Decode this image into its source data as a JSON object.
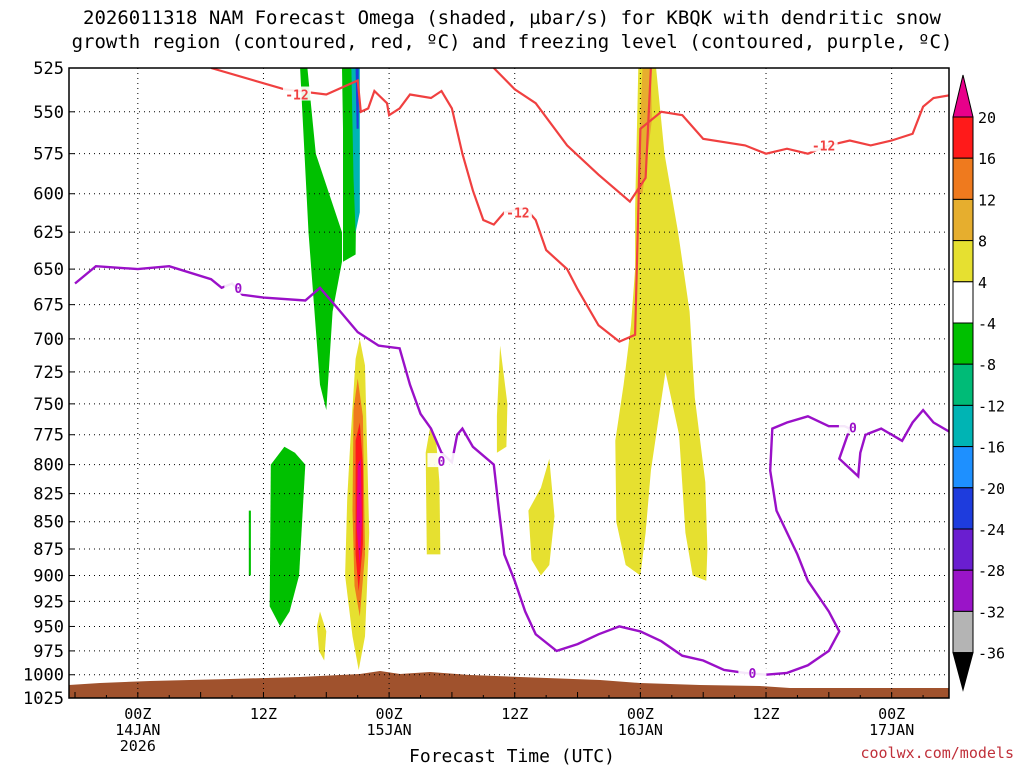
{
  "title_line1": "2026011318 NAM Forecast Omega (shaded, µbar/s) for KBQK with dendritic snow",
  "title_line2": "growth region (contoured, red, ºC) and freezing level (contoured, purple, ºC)",
  "watermark": "coolwx.com/models",
  "chart_data": {
    "type": "heatmap",
    "xlabel": "Forecast Time (UTC)",
    "ylabel": "",
    "x_unit": "forecast hour",
    "xlim": [
      0,
      84
    ],
    "ylim": [
      1025,
      525
    ],
    "y_ticks": [
      525,
      550,
      575,
      600,
      625,
      650,
      675,
      700,
      725,
      750,
      775,
      800,
      825,
      850,
      875,
      900,
      925,
      950,
      975,
      1000,
      1025
    ],
    "x_ticks": [
      {
        "hour": 6,
        "lines": [
          "00Z",
          "14JAN",
          "2026"
        ]
      },
      {
        "hour": 18,
        "lines": [
          "12Z"
        ]
      },
      {
        "hour": 30,
        "lines": [
          "00Z",
          "15JAN"
        ]
      },
      {
        "hour": 42,
        "lines": [
          "12Z"
        ]
      },
      {
        "hour": 54,
        "lines": [
          "00Z",
          "16JAN"
        ]
      },
      {
        "hour": 66,
        "lines": [
          "12Z"
        ]
      },
      {
        "hour": 78,
        "lines": [
          "00Z",
          "17JAN"
        ]
      }
    ],
    "colorbar": {
      "labels": [
        "20",
        "16",
        "12",
        "8",
        "4",
        "-4",
        "-8",
        "-12",
        "-16",
        "-20",
        "-24",
        "-28",
        "-32",
        "-36"
      ],
      "colors": [
        "#ff1a1a",
        "#ef7a1e",
        "#e6ae2e",
        "#e6e030",
        "#ffffff",
        "#00c000",
        "#00bb77",
        "#00b4b4",
        "#1e90ff",
        "#1e3cdd",
        "#6a1ed0",
        "#9a14c8",
        "#b4b4b4"
      ],
      "top_color": "#e8008a",
      "bottom_color": "#000000"
    },
    "contours": {
      "dgz_minus12": {
        "color": "#f04040",
        "label": "-12",
        "upper_points": [
          [
            13,
            525
          ],
          [
            20,
            537
          ],
          [
            24,
            540
          ],
          [
            27,
            532
          ],
          [
            27.3,
            550
          ],
          [
            28,
            548
          ],
          [
            28.6,
            538
          ],
          [
            29.8,
            545
          ],
          [
            30,
            552
          ],
          [
            31,
            548
          ],
          [
            32,
            540
          ],
          [
            34,
            542
          ],
          [
            35,
            538
          ],
          [
            36,
            548
          ],
          [
            37,
            575
          ],
          [
            38,
            598
          ],
          [
            39,
            617
          ],
          [
            40,
            620
          ],
          [
            41,
            612
          ],
          [
            43,
            609
          ],
          [
            44,
            617
          ],
          [
            45,
            637
          ],
          [
            47,
            650
          ],
          [
            48,
            664
          ],
          [
            50,
            690
          ],
          [
            52,
            702
          ],
          [
            53.5,
            697
          ],
          [
            54,
            560
          ],
          [
            56,
            550
          ],
          [
            58,
            552
          ],
          [
            60,
            566
          ],
          [
            64,
            570
          ],
          [
            66,
            575
          ],
          [
            68,
            572
          ],
          [
            70,
            575
          ],
          [
            72,
            570
          ],
          [
            74,
            567
          ],
          [
            76,
            570
          ],
          [
            78,
            567
          ],
          [
            80,
            563
          ],
          [
            81,
            547
          ],
          [
            82,
            542
          ],
          [
            84,
            540
          ]
        ],
        "lower_points": [
          [
            40,
            525
          ],
          [
            42,
            537
          ],
          [
            44,
            545
          ],
          [
            47,
            570
          ],
          [
            50,
            588
          ],
          [
            53,
            605
          ],
          [
            54.5,
            590
          ],
          [
            55,
            525
          ]
        ]
      },
      "freezing_level": {
        "color": "#9a10c8",
        "label": "0",
        "main_points": [
          [
            0,
            660
          ],
          [
            2,
            648
          ],
          [
            6,
            650
          ],
          [
            9,
            648
          ],
          [
            13,
            657
          ],
          [
            14,
            663
          ],
          [
            15,
            660
          ],
          [
            16,
            668
          ],
          [
            18,
            670
          ],
          [
            22,
            672
          ],
          [
            23.4,
            663
          ],
          [
            25,
            677
          ],
          [
            27,
            695
          ],
          [
            29,
            705
          ],
          [
            31,
            707
          ],
          [
            32,
            735
          ],
          [
            33,
            758
          ],
          [
            34,
            770
          ],
          [
            35,
            790
          ],
          [
            36,
            798
          ],
          [
            36.5,
            775
          ],
          [
            37,
            770
          ],
          [
            38,
            785
          ],
          [
            40,
            800
          ],
          [
            40.5,
            840
          ],
          [
            41,
            880
          ],
          [
            42,
            905
          ],
          [
            43,
            935
          ],
          [
            44,
            958
          ],
          [
            46,
            975
          ],
          [
            48,
            968
          ],
          [
            50,
            958
          ],
          [
            52,
            950
          ],
          [
            54,
            955
          ],
          [
            56,
            965
          ],
          [
            58,
            980
          ],
          [
            60,
            985
          ],
          [
            62,
            995
          ],
          [
            64,
            998
          ],
          [
            66,
            1000
          ],
          [
            68,
            998
          ],
          [
            70,
            990
          ],
          [
            72,
            975
          ],
          [
            73,
            955
          ],
          [
            72,
            935
          ],
          [
            70,
            905
          ],
          [
            69,
            880
          ],
          [
            67,
            840
          ],
          [
            66.4,
            805
          ],
          [
            66.6,
            770
          ],
          [
            68,
            765
          ],
          [
            70,
            760
          ],
          [
            72,
            768
          ],
          [
            73.5,
            768
          ],
          [
            74,
            770
          ],
          [
            73,
            795
          ],
          [
            74.8,
            810
          ],
          [
            75,
            790
          ],
          [
            75.5,
            775
          ],
          [
            77,
            770
          ],
          [
            78,
            775
          ],
          [
            79,
            780
          ],
          [
            80,
            765
          ],
          [
            81,
            755
          ],
          [
            82,
            765
          ],
          [
            84,
            775
          ]
        ]
      }
    },
    "omega_shading": [
      {
        "value_range": [
          -8,
          -4
        ],
        "color": "#00c000",
        "points": [
          [
            21.5,
            525
          ],
          [
            22.2,
            525
          ],
          [
            23,
            575
          ],
          [
            25.5,
            625
          ],
          [
            25.5,
            645
          ],
          [
            24.6,
            680
          ],
          [
            24,
            755
          ],
          [
            23.4,
            735
          ],
          [
            22.3,
            625
          ]
        ]
      },
      {
        "value_range": [
          -8,
          -4
        ],
        "color": "#00c000",
        "points": [
          [
            25.5,
            525
          ],
          [
            26.4,
            525
          ],
          [
            26.9,
            575
          ],
          [
            26.8,
            640
          ],
          [
            25.6,
            645
          ],
          [
            25.6,
            560
          ]
        ]
      },
      {
        "value_range": [
          -16,
          -8
        ],
        "color": "#00b4b4",
        "points": [
          [
            26.4,
            525
          ],
          [
            27.2,
            525
          ],
          [
            27.2,
            612
          ],
          [
            26.8,
            625
          ],
          [
            26.6,
            590
          ]
        ]
      },
      {
        "value_range": [
          -24,
          -16
        ],
        "color": "#1e3cdd",
        "points": [
          [
            26.8,
            525
          ],
          [
            27.1,
            525
          ],
          [
            27.1,
            560
          ],
          [
            26.9,
            560
          ]
        ]
      },
      {
        "value_range": [
          -8,
          -4
        ],
        "color": "#00c000",
        "points": [
          [
            18.7,
            800
          ],
          [
            20,
            785
          ],
          [
            21,
            790
          ],
          [
            22,
            800
          ],
          [
            21.4,
            900
          ],
          [
            20.5,
            935
          ],
          [
            19.6,
            950
          ],
          [
            18.6,
            930
          ]
        ]
      },
      {
        "value_range": [
          -8,
          -4
        ],
        "color": "#00c000",
        "points": [
          [
            16.6,
            840
          ],
          [
            16.8,
            840
          ],
          [
            16.8,
            900
          ],
          [
            16.6,
            900
          ]
        ]
      },
      {
        "value_range": [
          4,
          8
        ],
        "color": "#e6e030",
        "points": [
          [
            26.3,
            780
          ],
          [
            26.8,
            715
          ],
          [
            27.2,
            700
          ],
          [
            27.7,
            720
          ],
          [
            28.1,
            860
          ],
          [
            27.7,
            960
          ],
          [
            27.1,
            995
          ],
          [
            26.5,
            960
          ],
          [
            25.8,
            900
          ],
          [
            26,
            830
          ]
        ]
      },
      {
        "value_range": [
          8,
          16
        ],
        "color": "#ef7a1e",
        "points": [
          [
            26.6,
            755
          ],
          [
            27,
            730
          ],
          [
            27.5,
            760
          ],
          [
            27.7,
            880
          ],
          [
            27.2,
            940
          ],
          [
            26.7,
            910
          ],
          [
            26.5,
            840
          ]
        ]
      },
      {
        "value_range": [
          16,
          20
        ],
        "color": "#ff1a1a",
        "points": [
          [
            26.8,
            780
          ],
          [
            27.2,
            765
          ],
          [
            27.5,
            800
          ],
          [
            27.5,
            870
          ],
          [
            27.1,
            915
          ],
          [
            26.8,
            880
          ]
        ]
      },
      {
        "value_range": [
          20,
          99
        ],
        "color": "#e8008a",
        "points": [
          [
            27,
            800
          ],
          [
            27.3,
            795
          ],
          [
            27.4,
            850
          ],
          [
            27.2,
            890
          ],
          [
            26.9,
            855
          ]
        ]
      },
      {
        "value_range": [
          4,
          8
        ],
        "color": "#e6e030",
        "points": [
          [
            23.1,
            950
          ],
          [
            23.4,
            935
          ],
          [
            24.0,
            955
          ],
          [
            23.8,
            985
          ],
          [
            23.3,
            975
          ]
        ]
      },
      {
        "value_range": [
          4,
          8
        ],
        "color": "#e6e030",
        "points": [
          [
            33.5,
            790
          ],
          [
            33.9,
            770
          ],
          [
            34.5,
            780
          ],
          [
            34.8,
            815
          ],
          [
            34.9,
            880
          ],
          [
            33.6,
            880
          ]
        ]
      },
      {
        "value_range": [
          4,
          8
        ],
        "color": "#e6e030",
        "points": [
          [
            40.3,
            760
          ],
          [
            40.6,
            705
          ],
          [
            41.3,
            750
          ],
          [
            41.2,
            785
          ],
          [
            40.3,
            790
          ]
        ]
      },
      {
        "value_range": [
          4,
          8
        ],
        "color": "#e6e030",
        "points": [
          [
            43.3,
            840
          ],
          [
            44.5,
            820
          ],
          [
            45.3,
            795
          ],
          [
            45.8,
            845
          ],
          [
            45.3,
            890
          ],
          [
            44.5,
            900
          ],
          [
            43.6,
            885
          ]
        ]
      },
      {
        "value_range": [
          4,
          8
        ],
        "color": "#e6e030",
        "points": [
          [
            53.5,
            610
          ],
          [
            53.8,
            525
          ],
          [
            55.5,
            525
          ],
          [
            56.3,
            575
          ],
          [
            57.6,
            625
          ],
          [
            58.7,
            680
          ],
          [
            59.2,
            745
          ],
          [
            60.2,
            815
          ],
          [
            60.4,
            875
          ],
          [
            60.3,
            905
          ],
          [
            59,
            900
          ],
          [
            58.3,
            860
          ],
          [
            57.7,
            775
          ],
          [
            56.4,
            725
          ],
          [
            55,
            805
          ],
          [
            54.5,
            860
          ],
          [
            54,
            900
          ],
          [
            52.6,
            890
          ],
          [
            51.7,
            850
          ],
          [
            51.6,
            780
          ],
          [
            52.4,
            735
          ],
          [
            53.1,
            690
          ],
          [
            53.5,
            650
          ]
        ]
      },
      {
        "value_range": [
          8,
          12
        ],
        "color": "#e6ae2e",
        "points": [
          [
            53.7,
            600
          ],
          [
            54.2,
            525
          ],
          [
            55,
            525
          ],
          [
            55.1,
            555
          ],
          [
            54.2,
            600
          ]
        ]
      }
    ]
  }
}
